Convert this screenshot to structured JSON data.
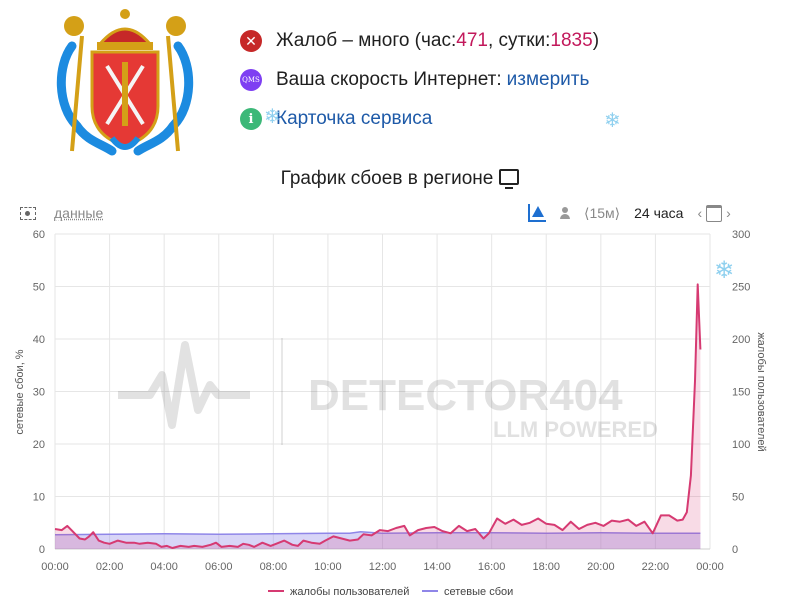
{
  "header": {
    "status_prefix": "Жалоб – много (час: ",
    "hour_count": "471",
    "status_mid": ", сутки: ",
    "day_count": "1835",
    "status_suffix": ")",
    "speed_text": "Ваша скорость Интернет: ",
    "speed_link": "измерить",
    "service_card": "Карточка сервиса",
    "qms_label": "QMS",
    "info_label": "i",
    "close_label": "✕"
  },
  "chart_title": "График сбоев в регионе",
  "toolbar": {
    "data_link": "данные",
    "range_15m": "⟨15м⟩",
    "range_24h": "24 часа",
    "prev": "‹",
    "next": "›"
  },
  "watermark": {
    "brand": "DETECTOR404",
    "sub": "LLM POWERED"
  },
  "colors": {
    "complaints": "#d63a72",
    "outages": "#8f86e8",
    "accent": "#c2185b",
    "link": "#1e5aa8"
  },
  "chart_data": {
    "type": "line",
    "x_ticks": [
      "00:00",
      "02:00",
      "04:00",
      "06:00",
      "08:00",
      "10:00",
      "12:00",
      "14:00",
      "16:00",
      "18:00",
      "20:00",
      "22:00",
      "00:00"
    ],
    "x_range_hours": [
      0,
      24
    ],
    "y_left": {
      "label": "сетевые сбои, %",
      "ticks": [
        0,
        10,
        20,
        30,
        40,
        50,
        60
      ],
      "range": [
        0,
        60
      ]
    },
    "y_right": {
      "label": "жалобы пользователей",
      "ticks": [
        0,
        50,
        100,
        150,
        200,
        250,
        300
      ],
      "range": [
        0,
        300
      ]
    },
    "legend": [
      "жалобы пользователей",
      "сетевые сбои"
    ],
    "legend_position": "bottom",
    "grid": true,
    "series": [
      {
        "name": "жалобы пользователей",
        "axis": "right",
        "x": [
          0,
          0.25,
          0.45,
          0.6,
          0.9,
          1.1,
          1.25,
          1.4,
          1.6,
          1.8,
          2.0,
          2.3,
          2.6,
          2.9,
          3.1,
          3.4,
          3.7,
          3.9,
          4.1,
          4.3,
          4.6,
          4.9,
          5.1,
          5.4,
          5.7,
          5.9,
          6.1,
          6.4,
          6.7,
          6.9,
          7.1,
          7.3,
          7.6,
          7.9,
          8.1,
          8.4,
          8.7,
          8.9,
          9.1,
          9.4,
          9.7,
          9.9,
          10.2,
          10.5,
          10.8,
          11.1,
          11.3,
          11.6,
          11.9,
          12.2,
          12.5,
          12.8,
          13.0,
          13.3,
          13.6,
          13.9,
          14.2,
          14.5,
          14.8,
          15.1,
          15.4,
          15.7,
          15.9,
          16.2,
          16.5,
          16.8,
          17.1,
          17.4,
          17.7,
          18.0,
          18.3,
          18.6,
          18.9,
          19.2,
          19.5,
          19.8,
          20.1,
          20.4,
          20.7,
          21.0,
          21.3,
          21.6,
          21.9,
          22.2,
          22.5,
          22.8,
          23.0,
          23.15,
          23.3,
          23.45,
          23.55,
          23.65
        ],
        "values": [
          19,
          18,
          22,
          18,
          10,
          9,
          12,
          16,
          8,
          6,
          5,
          8,
          6,
          6,
          5,
          6,
          5,
          2,
          3,
          1,
          3,
          2,
          3,
          2,
          4,
          6,
          2,
          3,
          2,
          5,
          4,
          2,
          6,
          3,
          5,
          8,
          4,
          3,
          8,
          6,
          5,
          8,
          12,
          10,
          8,
          9,
          14,
          13,
          18,
          17,
          20,
          22,
          13,
          18,
          20,
          21,
          17,
          15,
          22,
          17,
          19,
          10,
          15,
          29,
          24,
          28,
          23,
          25,
          29,
          24,
          23,
          18,
          26,
          19,
          23,
          25,
          22,
          27,
          26,
          28,
          22,
          26,
          15,
          32,
          32,
          27,
          28,
          35,
          70,
          160,
          252,
          190
        ]
      },
      {
        "name": "сетевые сбои",
        "axis": "left",
        "x": [
          0,
          2,
          4,
          6,
          8,
          10,
          10.8,
          11.2,
          12,
          14,
          16,
          18,
          20,
          22,
          23.65
        ],
        "values": [
          2.7,
          2.8,
          2.9,
          2.8,
          2.9,
          3.0,
          3.0,
          3.3,
          3.0,
          3.1,
          3.1,
          3.0,
          3.1,
          3.0,
          3.0
        ]
      }
    ]
  }
}
